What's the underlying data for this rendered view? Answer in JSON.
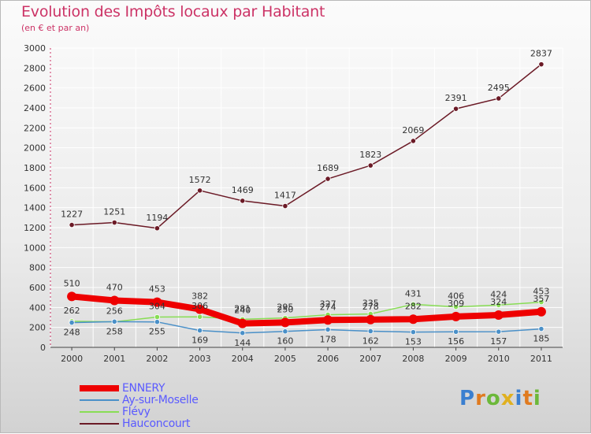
{
  "header": {
    "title": "Evolution des Impôts locaux par Habitant",
    "subtitle": "(en € et par an)"
  },
  "logo": {
    "text": "Proxiti"
  },
  "colors": {
    "title": "#cc3366",
    "grid": "#ffffff",
    "axis_text": "#333333",
    "label_text": "#333333",
    "legend_text": "#5a5aff"
  },
  "chart_data": {
    "type": "line",
    "title": "Evolution des Impôts locaux par Habitant",
    "subtitle": "(en € et par an)",
    "xlabel": "",
    "ylabel": "",
    "ylim": [
      0,
      3000
    ],
    "yticks": [
      0,
      200,
      400,
      600,
      800,
      1000,
      1200,
      1400,
      1600,
      1800,
      2000,
      2200,
      2400,
      2600,
      2800,
      3000
    ],
    "categories": [
      "2000",
      "2001",
      "2002",
      "2003",
      "2004",
      "2005",
      "2006",
      "2007",
      "2008",
      "2009",
      "2010",
      "2011"
    ],
    "grid": true,
    "legend_position": "bottom-left",
    "series": [
      {
        "name": "Hauconcourt",
        "color": "#6b1a26",
        "values": [
          1227,
          1251,
          1194,
          1572,
          1469,
          1417,
          1689,
          1823,
          2069,
          2391,
          2495,
          2837
        ],
        "labels": [
          "1227",
          "1251",
          "1194",
          "1572",
          "1469",
          "1417",
          "1689",
          "1823",
          "2069",
          "2391",
          "2495",
          "2837"
        ]
      },
      {
        "name": "Flévy",
        "color": "#88dd55",
        "values": [
          262,
          256,
          304,
          306,
          281,
          295,
          327,
          335,
          431,
          406,
          424,
          453
        ],
        "labels": [
          "262",
          "256",
          "304",
          "306",
          "281",
          "295",
          "327",
          "335",
          "431",
          "406",
          "424",
          "453"
        ]
      },
      {
        "name": "Ay-sur-Moselle",
        "color": "#4a90c8",
        "values": [
          248,
          258,
          255,
          169,
          144,
          160,
          178,
          162,
          153,
          156,
          157,
          185
        ],
        "labels": [
          "248",
          "258",
          "255",
          "169",
          "144",
          "160",
          "178",
          "162",
          "153",
          "156",
          "157",
          "185"
        ]
      },
      {
        "name": "ENNERY",
        "color": "#ee0000",
        "values": [
          510,
          470,
          453,
          382,
          240,
          250,
          274,
          278,
          282,
          309,
          324,
          357
        ],
        "labels": [
          "510",
          "470",
          "453",
          "382",
          "240",
          "250",
          "274",
          "278",
          "282",
          "309",
          "324",
          "357"
        ]
      }
    ]
  },
  "legend": {
    "items": [
      {
        "name": "ENNERY",
        "color": "#ee0000"
      },
      {
        "name": "Ay-sur-Moselle",
        "color": "#4a90c8"
      },
      {
        "name": "Flévy",
        "color": "#88dd55"
      },
      {
        "name": "Hauconcourt",
        "color": "#6b1a26"
      }
    ]
  }
}
